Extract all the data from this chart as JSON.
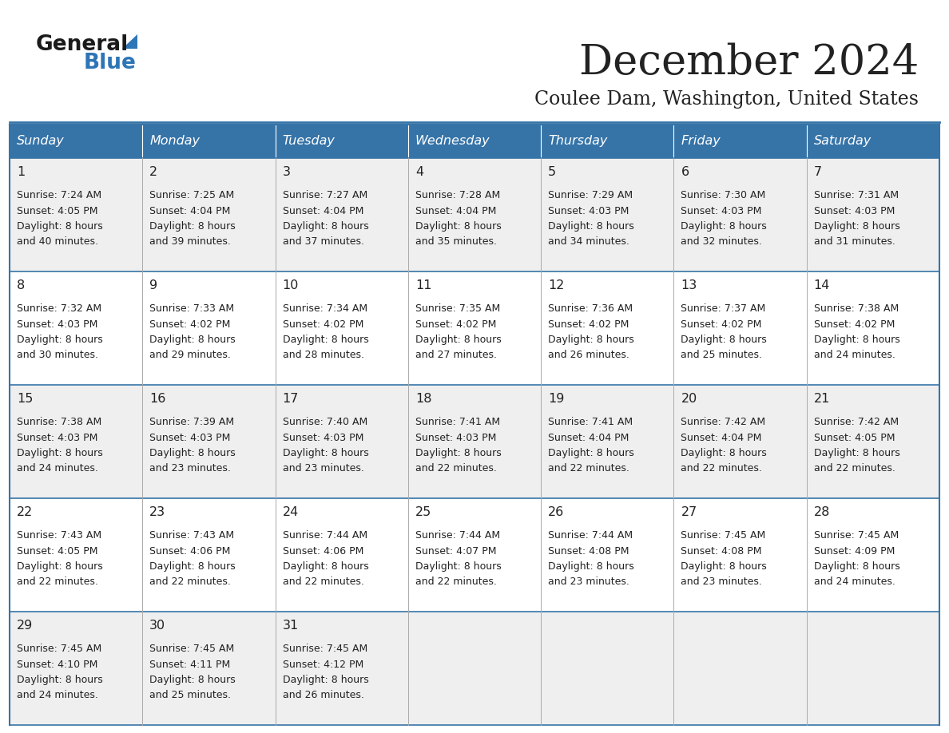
{
  "title": "December 2024",
  "subtitle": "Coulee Dam, Washington, United States",
  "header_color": "#3674a8",
  "header_text_color": "#FFFFFF",
  "day_names": [
    "Sunday",
    "Monday",
    "Tuesday",
    "Wednesday",
    "Thursday",
    "Friday",
    "Saturday"
  ],
  "background_color": "#FFFFFF",
  "cell_bg_row0": "#EFEFEF",
  "cell_bg_row1": "#FFFFFF",
  "border_color": "#3674a8",
  "text_color": "#222222",
  "logo_general_color": "#1a1a1a",
  "logo_blue_color": "#2E75B6",
  "logo_triangle_color": "#2E75B6",
  "days": [
    {
      "day": 1,
      "col": 0,
      "row": 0,
      "sunrise": "7:24 AM",
      "sunset": "4:05 PM",
      "minutes": "40"
    },
    {
      "day": 2,
      "col": 1,
      "row": 0,
      "sunrise": "7:25 AM",
      "sunset": "4:04 PM",
      "minutes": "39"
    },
    {
      "day": 3,
      "col": 2,
      "row": 0,
      "sunrise": "7:27 AM",
      "sunset": "4:04 PM",
      "minutes": "37"
    },
    {
      "day": 4,
      "col": 3,
      "row": 0,
      "sunrise": "7:28 AM",
      "sunset": "4:04 PM",
      "minutes": "35"
    },
    {
      "day": 5,
      "col": 4,
      "row": 0,
      "sunrise": "7:29 AM",
      "sunset": "4:03 PM",
      "minutes": "34"
    },
    {
      "day": 6,
      "col": 5,
      "row": 0,
      "sunrise": "7:30 AM",
      "sunset": "4:03 PM",
      "minutes": "32"
    },
    {
      "day": 7,
      "col": 6,
      "row": 0,
      "sunrise": "7:31 AM",
      "sunset": "4:03 PM",
      "minutes": "31"
    },
    {
      "day": 8,
      "col": 0,
      "row": 1,
      "sunrise": "7:32 AM",
      "sunset": "4:03 PM",
      "minutes": "30"
    },
    {
      "day": 9,
      "col": 1,
      "row": 1,
      "sunrise": "7:33 AM",
      "sunset": "4:02 PM",
      "minutes": "29"
    },
    {
      "day": 10,
      "col": 2,
      "row": 1,
      "sunrise": "7:34 AM",
      "sunset": "4:02 PM",
      "minutes": "28"
    },
    {
      "day": 11,
      "col": 3,
      "row": 1,
      "sunrise": "7:35 AM",
      "sunset": "4:02 PM",
      "minutes": "27"
    },
    {
      "day": 12,
      "col": 4,
      "row": 1,
      "sunrise": "7:36 AM",
      "sunset": "4:02 PM",
      "minutes": "26"
    },
    {
      "day": 13,
      "col": 5,
      "row": 1,
      "sunrise": "7:37 AM",
      "sunset": "4:02 PM",
      "minutes": "25"
    },
    {
      "day": 14,
      "col": 6,
      "row": 1,
      "sunrise": "7:38 AM",
      "sunset": "4:02 PM",
      "minutes": "24"
    },
    {
      "day": 15,
      "col": 0,
      "row": 2,
      "sunrise": "7:38 AM",
      "sunset": "4:03 PM",
      "minutes": "24"
    },
    {
      "day": 16,
      "col": 1,
      "row": 2,
      "sunrise": "7:39 AM",
      "sunset": "4:03 PM",
      "minutes": "23"
    },
    {
      "day": 17,
      "col": 2,
      "row": 2,
      "sunrise": "7:40 AM",
      "sunset": "4:03 PM",
      "minutes": "23"
    },
    {
      "day": 18,
      "col": 3,
      "row": 2,
      "sunrise": "7:41 AM",
      "sunset": "4:03 PM",
      "minutes": "22"
    },
    {
      "day": 19,
      "col": 4,
      "row": 2,
      "sunrise": "7:41 AM",
      "sunset": "4:04 PM",
      "minutes": "22"
    },
    {
      "day": 20,
      "col": 5,
      "row": 2,
      "sunrise": "7:42 AM",
      "sunset": "4:04 PM",
      "minutes": "22"
    },
    {
      "day": 21,
      "col": 6,
      "row": 2,
      "sunrise": "7:42 AM",
      "sunset": "4:05 PM",
      "minutes": "22"
    },
    {
      "day": 22,
      "col": 0,
      "row": 3,
      "sunrise": "7:43 AM",
      "sunset": "4:05 PM",
      "minutes": "22"
    },
    {
      "day": 23,
      "col": 1,
      "row": 3,
      "sunrise": "7:43 AM",
      "sunset": "4:06 PM",
      "minutes": "22"
    },
    {
      "day": 24,
      "col": 2,
      "row": 3,
      "sunrise": "7:44 AM",
      "sunset": "4:06 PM",
      "minutes": "22"
    },
    {
      "day": 25,
      "col": 3,
      "row": 3,
      "sunrise": "7:44 AM",
      "sunset": "4:07 PM",
      "minutes": "22"
    },
    {
      "day": 26,
      "col": 4,
      "row": 3,
      "sunrise": "7:44 AM",
      "sunset": "4:08 PM",
      "minutes": "23"
    },
    {
      "day": 27,
      "col": 5,
      "row": 3,
      "sunrise": "7:45 AM",
      "sunset": "4:08 PM",
      "minutes": "23"
    },
    {
      "day": 28,
      "col": 6,
      "row": 3,
      "sunrise": "7:45 AM",
      "sunset": "4:09 PM",
      "minutes": "24"
    },
    {
      "day": 29,
      "col": 0,
      "row": 4,
      "sunrise": "7:45 AM",
      "sunset": "4:10 PM",
      "minutes": "24"
    },
    {
      "day": 30,
      "col": 1,
      "row": 4,
      "sunrise": "7:45 AM",
      "sunset": "4:11 PM",
      "minutes": "25"
    },
    {
      "day": 31,
      "col": 2,
      "row": 4,
      "sunrise": "7:45 AM",
      "sunset": "4:12 PM",
      "minutes": "26"
    }
  ]
}
